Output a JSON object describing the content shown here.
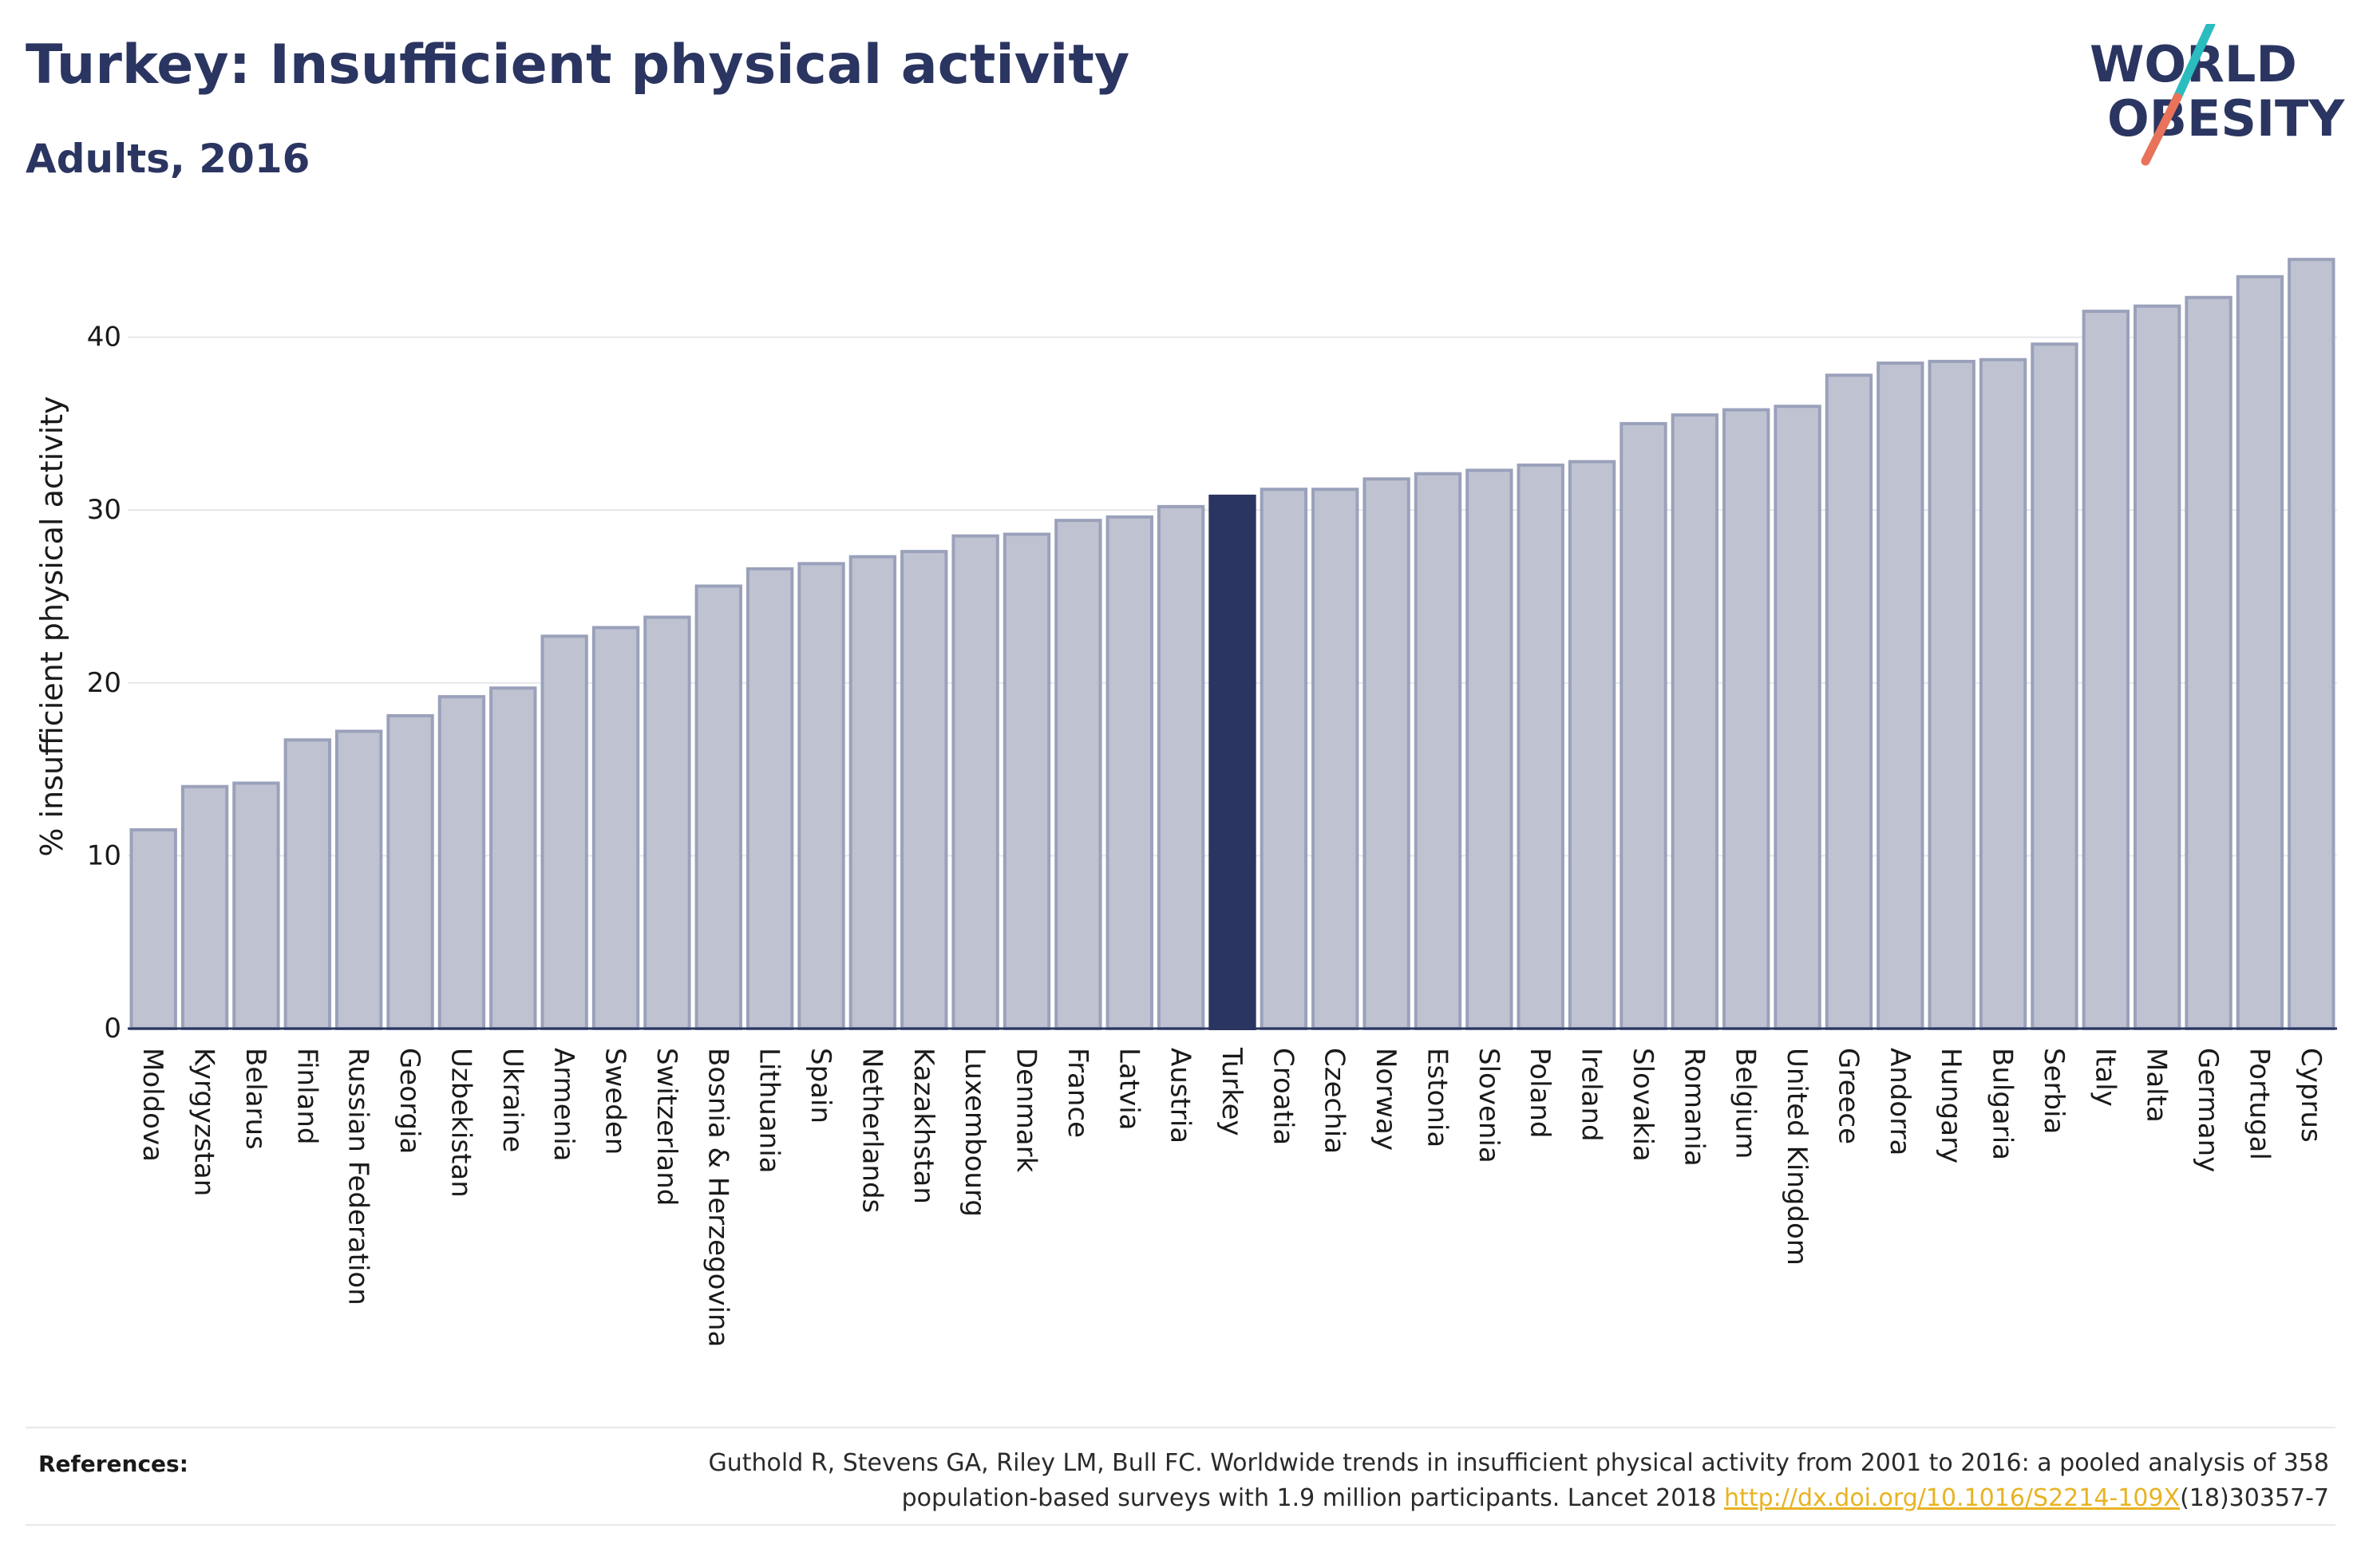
{
  "header": {
    "title": "Turkey: Insufficient physical activity",
    "subtitle": "Adults, 2016"
  },
  "logo": {
    "line1": "WORLD",
    "line2": "OBESITY",
    "stroke_colors": [
      "#2bbcc0",
      "#e8735a"
    ]
  },
  "colors": {
    "bar_fill": "#bfc3d1",
    "bar_edge": "#9aa1ba",
    "highlight": "#2b3561",
    "text": "#2b3561",
    "link": "#e8b323"
  },
  "chart_data": {
    "type": "bar",
    "title": "Turkey: Insufficient physical activity",
    "subtitle": "Adults, 2016",
    "xlabel": "",
    "ylabel": "% insufficient physical activity",
    "ylim": [
      0,
      45
    ],
    "yticks": [
      0,
      10,
      20,
      30,
      40
    ],
    "grid": true,
    "highlight": "Turkey",
    "categories": [
      "Moldova",
      "Kyrgyzstan",
      "Belarus",
      "Finland",
      "Russian Federation",
      "Georgia",
      "Uzbekistan",
      "Ukraine",
      "Armenia",
      "Sweden",
      "Switzerland",
      "Bosnia & Herzegovina",
      "Lithuania",
      "Spain",
      "Netherlands",
      "Kazakhstan",
      "Luxembourg",
      "Denmark",
      "France",
      "Latvia",
      "Austria",
      "Turkey",
      "Croatia",
      "Czechia",
      "Norway",
      "Estonia",
      "Slovenia",
      "Poland",
      "Ireland",
      "Slovakia",
      "Romania",
      "Belgium",
      "United Kingdom",
      "Greece",
      "Andorra",
      "Hungary",
      "Bulgaria",
      "Serbia",
      "Italy",
      "Malta",
      "Germany",
      "Portugal",
      "Cyprus"
    ],
    "values": [
      11.5,
      14.0,
      14.2,
      16.7,
      17.2,
      18.1,
      19.2,
      19.7,
      22.7,
      23.2,
      23.8,
      25.6,
      26.6,
      26.9,
      27.3,
      27.6,
      28.5,
      28.6,
      29.4,
      29.6,
      30.2,
      30.8,
      31.2,
      31.2,
      31.8,
      32.1,
      32.3,
      32.6,
      32.8,
      35.0,
      35.5,
      35.8,
      36.0,
      37.8,
      38.5,
      38.6,
      38.7,
      39.6,
      41.5,
      41.8,
      42.3,
      43.5,
      44.5
    ]
  },
  "footer": {
    "ref_label": "References:",
    "ref_line1": "Guthold R, Stevens GA, Riley LM, Bull FC. Worldwide trends in insufficient physical activity from 2001 to 2016: a pooled analysis of 358",
    "ref_line2_pre": "population-based surveys with 1.9 million participants. Lancet 2018 ",
    "ref_link": "http://dx.doi.org/10.1016/S2214-109X",
    "ref_line2_post": "(18)30357-7"
  }
}
